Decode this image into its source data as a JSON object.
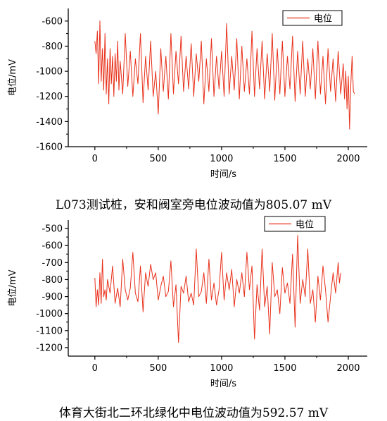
{
  "charts": [
    {
      "xlabel": "时间/s",
      "ylabel": "电位/mV",
      "legend": "电位",
      "caption": "L073测试桩，安和阀室旁电位波动值为805.07 mV"
    },
    {
      "xlabel": "时间/s",
      "ylabel": "电位/mV",
      "legend": "电位",
      "caption": "体育大街北二环北绿化中电位波动值为592.57 mV"
    }
  ],
  "chart_data": [
    {
      "type": "line",
      "series": [
        {
          "name": "电位",
          "color": "#e8301a",
          "x": [
            0,
            10,
            20,
            30,
            40,
            50,
            60,
            70,
            80,
            90,
            100,
            110,
            120,
            130,
            140,
            150,
            160,
            170,
            180,
            190,
            200,
            220,
            240,
            260,
            280,
            300,
            320,
            340,
            360,
            380,
            400,
            420,
            440,
            460,
            480,
            500,
            520,
            540,
            560,
            580,
            600,
            620,
            640,
            660,
            680,
            700,
            720,
            740,
            760,
            780,
            800,
            820,
            840,
            860,
            880,
            900,
            920,
            940,
            960,
            980,
            1000,
            1020,
            1040,
            1060,
            1080,
            1100,
            1120,
            1140,
            1160,
            1180,
            1200,
            1220,
            1240,
            1260,
            1280,
            1300,
            1320,
            1340,
            1360,
            1380,
            1400,
            1420,
            1440,
            1460,
            1480,
            1500,
            1520,
            1540,
            1560,
            1580,
            1600,
            1620,
            1640,
            1660,
            1680,
            1700,
            1720,
            1740,
            1760,
            1780,
            1800,
            1820,
            1840,
            1860,
            1880,
            1900,
            1920,
            1940,
            1960,
            1970,
            1980,
            1990,
            2000,
            2010,
            2020,
            2030,
            2040,
            2050
          ],
          "values": [
            -760,
            -860,
            -680,
            -1100,
            -600,
            -1080,
            -820,
            -1150,
            -700,
            -1180,
            -900,
            -1260,
            -820,
            -1100,
            -880,
            -1200,
            -860,
            -1080,
            -760,
            -1150,
            -920,
            -1180,
            -700,
            -1120,
            -840,
            -1200,
            -900,
            -1100,
            -700,
            -1250,
            -880,
            -1150,
            -760,
            -1200,
            -1000,
            -1340,
            -820,
            -1160,
            -880,
            -1220,
            -700,
            -1180,
            -840,
            -1100,
            -720,
            -1160,
            -880,
            -1140,
            -780,
            -1200,
            -860,
            -1080,
            -760,
            -1260,
            -900,
            -1160,
            -740,
            -1200,
            -880,
            -1140,
            -840,
            -1200,
            -620,
            -1180,
            -880,
            -1150,
            -740,
            -1220,
            -800,
            -1160,
            -900,
            -1180,
            -680,
            -1200,
            -820,
            -1140,
            -760,
            -1220,
            -860,
            -1160,
            -700,
            -1230,
            -820,
            -1180,
            -760,
            -1200,
            -880,
            -1140,
            -720,
            -1240,
            -840,
            -1180,
            -760,
            -1200,
            -900,
            -1140,
            -820,
            -1220,
            -760,
            -1180,
            -880,
            -1260,
            -820,
            -1160,
            -900,
            -1240,
            -840,
            -1180,
            -940,
            -1220,
            -1000,
            -1300,
            -1040,
            -1460,
            -1100,
            -880,
            -1160,
            -1180
          ],
          "annotation": "series ends at about x=2050"
        }
      ],
      "xlim": [
        -210,
        2150
      ],
      "ylim": [
        -1600,
        -500
      ],
      "xticks": [
        0,
        500,
        1000,
        1500,
        2000
      ],
      "yticks": [
        -1600,
        -1400,
        -1200,
        -1000,
        -800,
        -600
      ],
      "legend_position": "top-right",
      "grid": false
    },
    {
      "type": "line",
      "series": [
        {
          "name": "电位",
          "color": "#e8301a",
          "x": [
            0,
            10,
            20,
            30,
            40,
            50,
            60,
            70,
            80,
            90,
            100,
            120,
            140,
            160,
            180,
            200,
            220,
            240,
            260,
            280,
            300,
            320,
            340,
            360,
            380,
            400,
            420,
            440,
            460,
            480,
            500,
            520,
            540,
            560,
            580,
            600,
            620,
            640,
            660,
            680,
            700,
            720,
            740,
            760,
            780,
            800,
            820,
            840,
            860,
            880,
            900,
            920,
            940,
            960,
            980,
            1000,
            1020,
            1040,
            1060,
            1080,
            1100,
            1120,
            1140,
            1160,
            1180,
            1200,
            1220,
            1240,
            1260,
            1280,
            1300,
            1320,
            1340,
            1360,
            1380,
            1400,
            1420,
            1440,
            1460,
            1480,
            1500,
            1520,
            1540,
            1560,
            1580,
            1600,
            1620,
            1640,
            1660,
            1680,
            1700,
            1720,
            1740,
            1760,
            1780,
            1800,
            1820,
            1840,
            1860,
            1880,
            1900,
            1920,
            1930,
            1940
          ],
          "values": [
            -790,
            -960,
            -860,
            -950,
            -760,
            -940,
            -680,
            -900,
            -860,
            -920,
            -800,
            -880,
            -720,
            -940,
            -850,
            -960,
            -680,
            -860,
            -920,
            -850,
            -640,
            -880,
            -930,
            -720,
            -990,
            -760,
            -840,
            -710,
            -800,
            -760,
            -920,
            -840,
            -780,
            -900,
            -870,
            -690,
            -960,
            -830,
            -1170,
            -840,
            -880,
            -780,
            -930,
            -880,
            -950,
            -620,
            -900,
            -870,
            -760,
            -940,
            -680,
            -920,
            -820,
            -950,
            -860,
            -640,
            -920,
            -760,
            -860,
            -740,
            -960,
            -800,
            -880,
            -760,
            -900,
            -640,
            -860,
            -720,
            -1150,
            -830,
            -980,
            -620,
            -960,
            -840,
            -1120,
            -700,
            -900,
            -860,
            -1000,
            -730,
            -880,
            -820,
            -940,
            -650,
            -1080,
            -540,
            -940,
            -800,
            -900,
            -620,
            -940,
            -860,
            -1050,
            -780,
            -920,
            -720,
            -860,
            -1050,
            -900,
            -760,
            -880,
            -700,
            -820,
            -760
          ],
          "annotation": "series ends at about x=1940"
        }
      ],
      "xlim": [
        -210,
        2150
      ],
      "ylim": [
        -1250,
        -450
      ],
      "xticks": [
        0,
        500,
        1000,
        1500,
        2000
      ],
      "yticks": [
        -1200,
        -1100,
        -1000,
        -900,
        -800,
        -700,
        -600,
        -500
      ],
      "legend_position": "top-right",
      "grid": false
    }
  ]
}
